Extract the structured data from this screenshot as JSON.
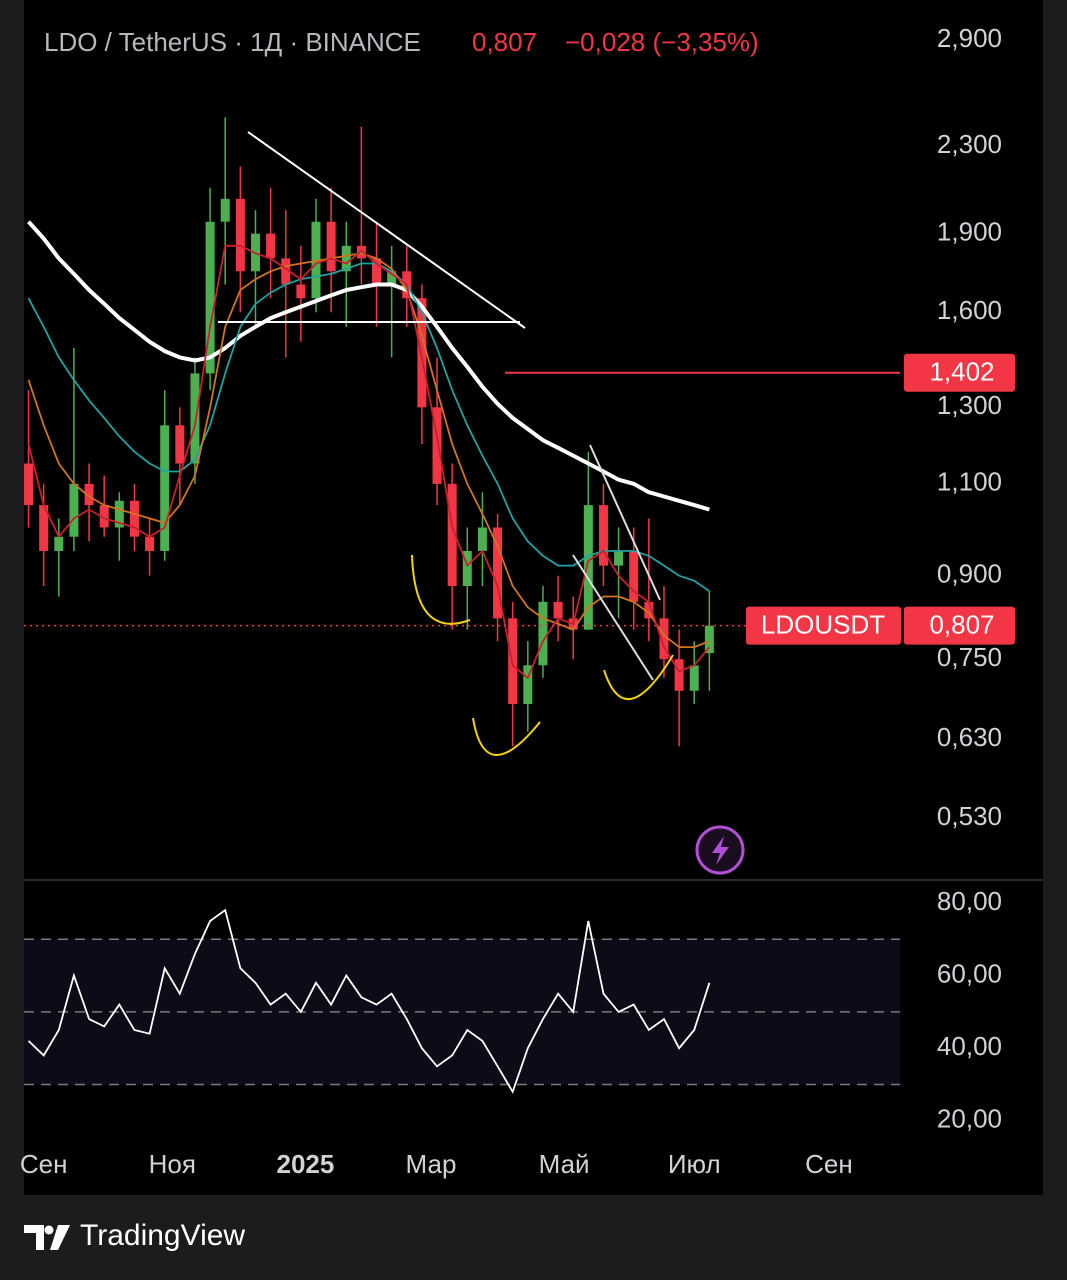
{
  "header": {
    "symbol": "LDO / TetherUS · 1Д · BINANCE",
    "price": "0,807",
    "change": "−0,028 (−3,35%)"
  },
  "chart_data": {
    "type": "candlestick",
    "log": true,
    "up_color": "#4caf50",
    "down_color": "#f23645",
    "open": [
      1.15,
      1.05,
      0.95,
      0.98,
      1.1,
      1.05,
      1.0,
      1.06,
      0.98,
      0.95,
      1.25,
      1.15,
      1.4,
      1.95,
      2.05,
      1.75,
      1.9,
      1.8,
      1.7,
      1.65,
      1.95,
      1.75,
      1.85,
      1.8,
      1.7,
      1.75,
      1.65,
      1.3,
      1.1,
      0.88,
      0.95,
      1.0,
      0.82,
      0.68,
      0.74,
      0.85,
      0.82,
      0.8,
      1.05,
      0.92,
      0.95,
      0.85,
      0.82,
      0.75,
      0.7,
      0.76
    ],
    "high": [
      1.35,
      1.1,
      1.02,
      1.48,
      1.15,
      1.12,
      1.08,
      1.1,
      1.02,
      1.35,
      1.3,
      1.45,
      2.1,
      2.45,
      2.2,
      2.0,
      2.1,
      2.0,
      1.85,
      2.05,
      2.1,
      1.95,
      2.4,
      1.95,
      1.85,
      1.85,
      1.7,
      1.45,
      1.15,
      1.0,
      1.08,
      1.03,
      0.85,
      0.78,
      0.88,
      0.9,
      0.86,
      1.18,
      1.1,
      1.0,
      1.0,
      1.02,
      0.88,
      0.8,
      0.78,
      0.87
    ],
    "low": [
      1.0,
      0.88,
      0.86,
      0.95,
      0.97,
      0.98,
      0.93,
      0.95,
      0.9,
      0.93,
      1.05,
      1.1,
      1.35,
      1.7,
      1.6,
      1.55,
      1.65,
      1.45,
      1.5,
      1.6,
      1.6,
      1.55,
      1.7,
      1.55,
      1.45,
      1.55,
      1.2,
      1.05,
      0.8,
      0.8,
      0.88,
      0.78,
      0.62,
      0.64,
      0.72,
      0.78,
      0.75,
      0.8,
      0.88,
      0.82,
      0.8,
      0.78,
      0.72,
      0.62,
      0.68,
      0.7
    ],
    "close": [
      1.05,
      0.95,
      0.98,
      1.1,
      1.05,
      1.0,
      1.06,
      0.98,
      0.95,
      1.25,
      1.15,
      1.4,
      1.95,
      2.05,
      1.75,
      1.9,
      1.8,
      1.7,
      1.65,
      1.95,
      1.75,
      1.85,
      1.8,
      1.7,
      1.75,
      1.65,
      1.3,
      1.1,
      0.88,
      0.95,
      1.0,
      0.82,
      0.68,
      0.74,
      0.85,
      0.82,
      0.8,
      1.05,
      0.92,
      0.95,
      0.85,
      0.82,
      0.75,
      0.7,
      0.74,
      0.807
    ],
    "series": [
      {
        "color": "#ffffff",
        "values": [
          1.95,
          1.88,
          1.8,
          1.74,
          1.68,
          1.63,
          1.58,
          1.54,
          1.5,
          1.47,
          1.45,
          1.44,
          1.45,
          1.48,
          1.52,
          1.55,
          1.58,
          1.6,
          1.62,
          1.64,
          1.66,
          1.68,
          1.69,
          1.7,
          1.7,
          1.68,
          1.62,
          1.55,
          1.48,
          1.42,
          1.36,
          1.31,
          1.27,
          1.24,
          1.21,
          1.19,
          1.17,
          1.15,
          1.13,
          1.11,
          1.1,
          1.08,
          1.07,
          1.06,
          1.05,
          1.04
        ]
      },
      {
        "color": "#1fa3a3",
        "values": [
          1.65,
          1.55,
          1.45,
          1.38,
          1.32,
          1.27,
          1.22,
          1.18,
          1.15,
          1.13,
          1.13,
          1.16,
          1.25,
          1.4,
          1.55,
          1.63,
          1.67,
          1.7,
          1.72,
          1.73,
          1.74,
          1.76,
          1.78,
          1.78,
          1.75,
          1.7,
          1.6,
          1.48,
          1.35,
          1.25,
          1.17,
          1.1,
          1.02,
          0.97,
          0.94,
          0.92,
          0.92,
          0.94,
          0.95,
          0.95,
          0.95,
          0.94,
          0.92,
          0.9,
          0.89,
          0.87
        ]
      },
      {
        "color": "#d2741e",
        "values": [
          1.38,
          1.25,
          1.15,
          1.1,
          1.07,
          1.05,
          1.04,
          1.03,
          1.02,
          1.01,
          1.05,
          1.12,
          1.3,
          1.55,
          1.68,
          1.72,
          1.75,
          1.77,
          1.78,
          1.79,
          1.8,
          1.81,
          1.82,
          1.8,
          1.76,
          1.68,
          1.52,
          1.35,
          1.2,
          1.1,
          1.03,
          0.96,
          0.88,
          0.84,
          0.82,
          0.81,
          0.8,
          0.84,
          0.86,
          0.86,
          0.85,
          0.83,
          0.79,
          0.77,
          0.77,
          0.78
        ]
      },
      {
        "color": "#c8202e",
        "values": [
          1.2,
          1.05,
          0.98,
          1.02,
          1.04,
          1.02,
          1.01,
          1.0,
          0.98,
          1.0,
          1.12,
          1.25,
          1.55,
          1.85,
          1.85,
          1.82,
          1.8,
          1.76,
          1.72,
          1.78,
          1.8,
          1.78,
          1.83,
          1.78,
          1.74,
          1.7,
          1.45,
          1.22,
          1.0,
          0.92,
          0.95,
          0.88,
          0.74,
          0.72,
          0.78,
          0.82,
          0.81,
          0.93,
          0.95,
          0.9,
          0.87,
          0.85,
          0.77,
          0.73,
          0.74,
          0.77
        ]
      }
    ],
    "ylim": [
      0.463,
      3.165
    ],
    "yticks": [
      {
        "value": 2.9,
        "label": "2,900"
      },
      {
        "value": 2.3,
        "label": "2,300"
      },
      {
        "value": 1.9,
        "label": "1,900"
      },
      {
        "value": 1.6,
        "label": "1,600"
      },
      {
        "value": 1.3,
        "label": "1,300"
      },
      {
        "value": 1.1,
        "label": "1,100"
      },
      {
        "value": 0.9,
        "label": "0,900"
      },
      {
        "value": 0.75,
        "label": "0,750"
      },
      {
        "value": 0.63,
        "label": "0,630"
      },
      {
        "value": 0.53,
        "label": "0,530"
      }
    ],
    "xlim": [
      -0.3,
      57.6
    ],
    "xticks": [
      {
        "value": 1.0,
        "label": "Сен"
      },
      {
        "value": 9.5,
        "label": "Ноя"
      },
      {
        "value": 18.3,
        "label": "2025"
      },
      {
        "value": 26.6,
        "label": "Мар"
      },
      {
        "value": 35.4,
        "label": "Май"
      },
      {
        "value": 44.0,
        "label": "Июл"
      },
      {
        "value": 52.9,
        "label": "Сен"
      }
    ],
    "hline": {
      "value": 1.402,
      "label": "1,402",
      "color": "#f23645"
    },
    "last_price": {
      "symbol": "LDOUSDT",
      "value": 0.807,
      "label": "0,807",
      "color": "#f23645"
    },
    "rsi": {
      "color": "#ffffff",
      "values": [
        42,
        38,
        45,
        60,
        48,
        46,
        52,
        45,
        44,
        62,
        55,
        66,
        75,
        78,
        62,
        58,
        52,
        55,
        50,
        58,
        52,
        60,
        54,
        52,
        55,
        48,
        40,
        35,
        38,
        45,
        42,
        35,
        28,
        40,
        48,
        55,
        50,
        75,
        55,
        50,
        52,
        45,
        48,
        40,
        45,
        58
      ],
      "ylim": [
        16.1,
        86.3
      ],
      "yticks": [
        {
          "value": 80,
          "label": "80,00"
        },
        {
          "value": 60,
          "label": "60,00"
        },
        {
          "value": 40,
          "label": "40,00"
        },
        {
          "value": 20,
          "label": "20,00"
        }
      ],
      "levels": [
        70,
        50,
        30
      ]
    }
  },
  "footer": {
    "brand": "TradingView"
  }
}
